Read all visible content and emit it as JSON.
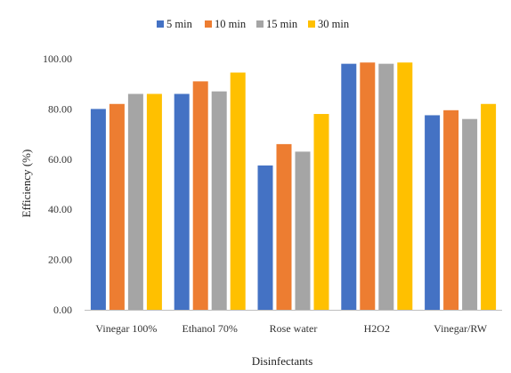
{
  "chart_data": {
    "type": "bar",
    "title": "",
    "xlabel": "Disinfectants",
    "ylabel": "Efficiency (%)",
    "categories": [
      "Vinegar 100%",
      "Ethanol 70%",
      "Rose water",
      "H2O2",
      "Vinegar/RW"
    ],
    "series": [
      {
        "name": "5 min",
        "color": "#4472C4",
        "values": [
          80.0,
          86.0,
          57.5,
          98.0,
          77.5
        ]
      },
      {
        "name": "10 min",
        "color": "#ED7D31",
        "values": [
          82.0,
          91.0,
          66.0,
          98.5,
          79.5
        ]
      },
      {
        "name": "15 min",
        "color": "#A5A5A5",
        "values": [
          86.0,
          87.0,
          63.0,
          98.0,
          76.0
        ]
      },
      {
        "name": "30 min",
        "color": "#FFC000",
        "values": [
          86.0,
          94.5,
          78.0,
          98.5,
          82.0
        ]
      }
    ],
    "ylim": [
      0,
      100
    ],
    "yticks": [
      "0.00",
      "20.00",
      "40.00",
      "60.00",
      "80.00",
      "100.00"
    ],
    "grid": false,
    "legend_position": "top"
  }
}
